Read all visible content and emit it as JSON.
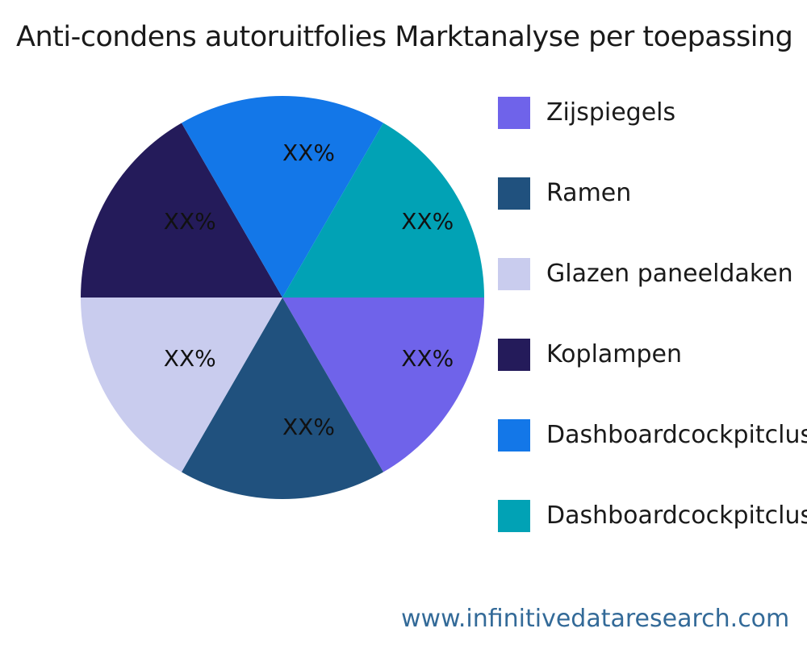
{
  "title": "Anti-condens autoruitfolies Marktanalyse per toepassing",
  "footer": {
    "url_text": "www.infinitivedataresearch.com",
    "url_color": "#336a98"
  },
  "chart_data": {
    "type": "pie",
    "title": "Anti-condens autoruitfolies Marktanalyse per toepassing",
    "legend_position": "right",
    "direction": "clockwise",
    "start_angle_deg": 0,
    "label_text_color": "#111111",
    "label_distance_fraction": 0.68,
    "slices": [
      {
        "label": "Zijspiegels",
        "value": 16.67,
        "value_label": "XX%",
        "color": "#6f63ea"
      },
      {
        "label": "Ramen",
        "value": 16.67,
        "value_label": "XX%",
        "color": "#20517e"
      },
      {
        "label": "Glazen paneeldaken",
        "value": 16.67,
        "value_label": "XX%",
        "color": "#c9ccee"
      },
      {
        "label": "Koplampen",
        "value": 16.67,
        "value_label": "XX%",
        "color": "#241b5a"
      },
      {
        "label": "Dashboardcockpitclusters",
        "value": 16.67,
        "value_label": "XX%",
        "color": "#1377e8"
      },
      {
        "label": "Dashboardcockpitclusters",
        "value": 16.67,
        "value_label": "XX%",
        "color": "#01a2b5"
      }
    ]
  }
}
